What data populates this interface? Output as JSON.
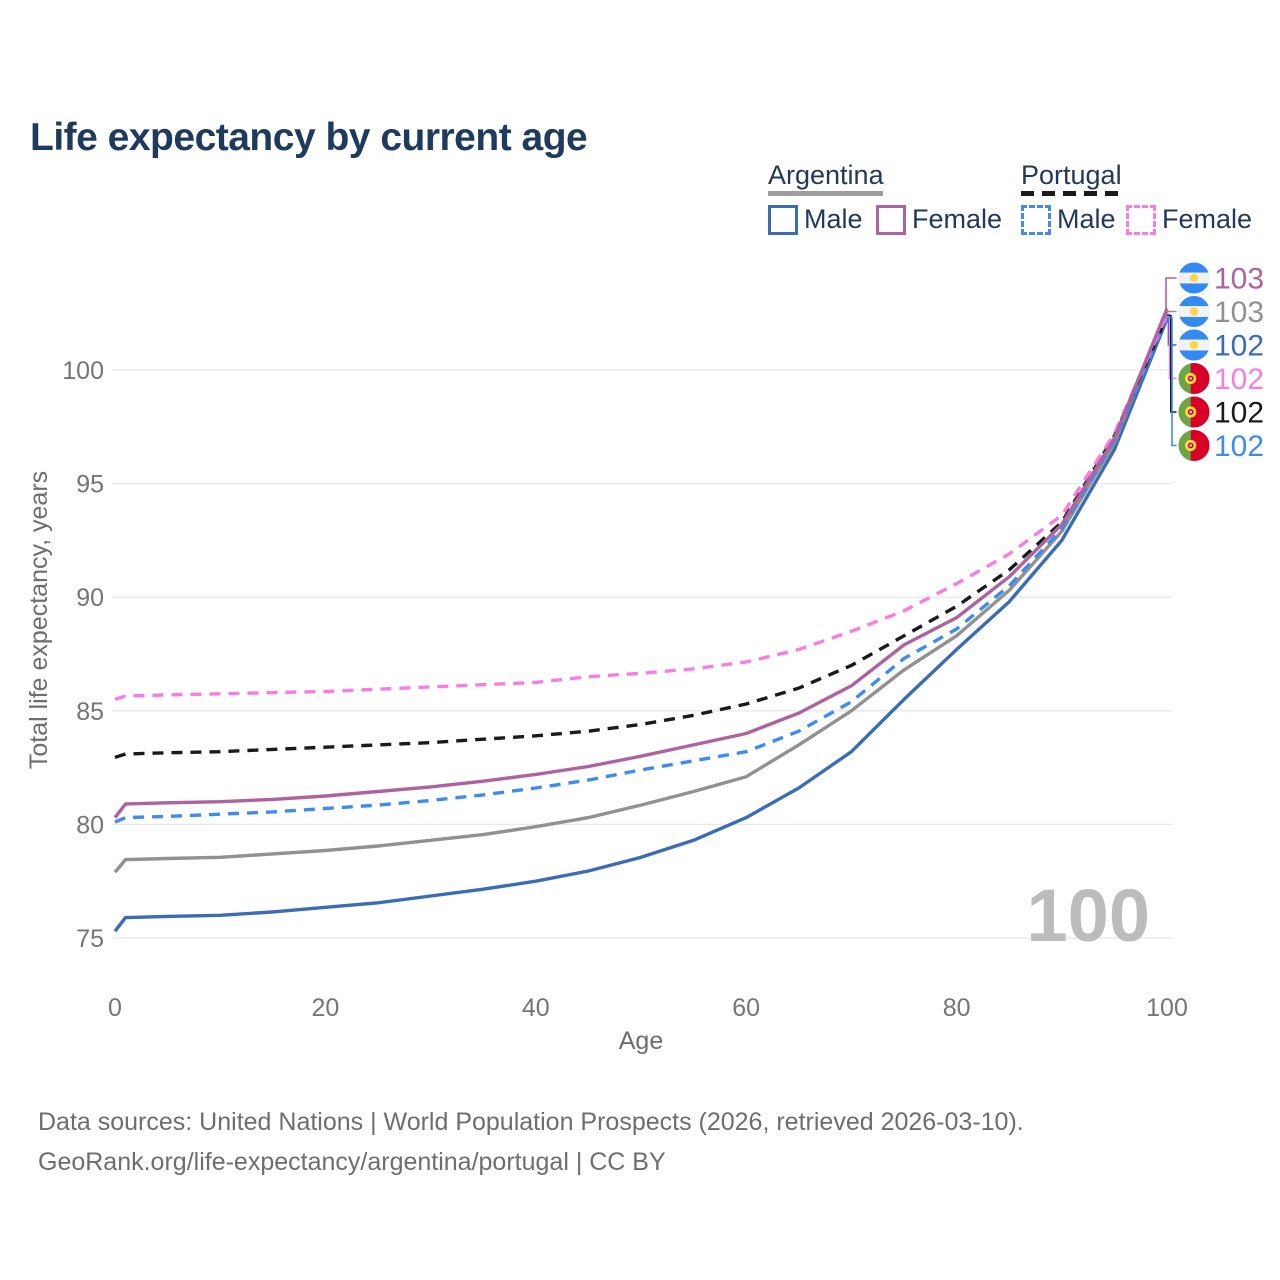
{
  "page": {
    "title": "Life expectancy by current age"
  },
  "legend": {
    "groups": [
      {
        "title": "Argentina",
        "line_style": "solid",
        "underline_series": "argentina_both",
        "items": [
          {
            "label": "Male",
            "key": "argentina_male"
          },
          {
            "label": "Female",
            "key": "argentina_female"
          }
        ]
      },
      {
        "title": "Portugal",
        "line_style": "dashed",
        "underline_series": "portugal_both",
        "items": [
          {
            "label": "Male",
            "key": "portugal_male"
          },
          {
            "label": "Female",
            "key": "portugal_female"
          }
        ]
      }
    ]
  },
  "footer": {
    "line1": "Data sources: United Nations | World Population Prospects (2026, retrieved 2026-03-10).",
    "line2": "GeoRank.org/life-expectancy/argentina/portugal | CC BY"
  },
  "chart_data": {
    "type": "line",
    "title": "Life expectancy by current age",
    "xlabel": "Age",
    "ylabel": "Total life expectancy, years",
    "xlim": [
      0,
      100
    ],
    "ylim": [
      74.5,
      103.2
    ],
    "xticks": [
      0,
      20,
      40,
      60,
      80,
      100
    ],
    "yticks": [
      75,
      80,
      85,
      90,
      95,
      100
    ],
    "grid": "horizontal",
    "legend_position": "top-right",
    "watermark": "100",
    "x": [
      0,
      1,
      5,
      10,
      15,
      20,
      25,
      30,
      35,
      40,
      45,
      50,
      55,
      60,
      65,
      70,
      75,
      80,
      85,
      90,
      95,
      100
    ],
    "series": [
      {
        "key": "argentina_male",
        "name": "Argentina Male",
        "country": "Argentina",
        "sex": "Male",
        "color": "#3b6cb5",
        "dash": "solid",
        "flag": "argentina",
        "end_label": "102",
        "label_row": 2,
        "values": [
          75.3,
          75.9,
          75.95,
          76.0,
          76.15,
          76.35,
          76.55,
          76.85,
          77.15,
          77.5,
          77.95,
          78.55,
          79.3,
          80.3,
          81.6,
          83.2,
          85.5,
          87.7,
          89.8,
          92.5,
          96.5,
          102.25
        ]
      },
      {
        "key": "argentina_both",
        "name": "Argentina Both sexes",
        "country": "Argentina",
        "sex": "Both",
        "color": "#919191",
        "dash": "solid",
        "flag": "argentina",
        "end_label": "103",
        "label_row": 1,
        "values": [
          77.9,
          78.45,
          78.5,
          78.55,
          78.7,
          78.85,
          79.05,
          79.3,
          79.55,
          79.9,
          80.3,
          80.85,
          81.45,
          82.1,
          83.5,
          85.0,
          86.8,
          88.3,
          90.3,
          92.9,
          96.8,
          102.55
        ]
      },
      {
        "key": "portugal_male",
        "name": "Portugal Male",
        "country": "Portugal",
        "sex": "Male",
        "color": "#3f8bf2",
        "dash": "dashed",
        "flag": "portugal",
        "end_label": "102",
        "label_row": 5,
        "values": [
          80.1,
          80.3,
          80.35,
          80.45,
          80.55,
          80.7,
          80.85,
          81.05,
          81.3,
          81.6,
          81.95,
          82.4,
          82.8,
          83.2,
          84.1,
          85.4,
          87.3,
          88.6,
          90.5,
          93.0,
          96.9,
          102.3
        ]
      },
      {
        "key": "portugal_both",
        "name": "Portugal Both sexes",
        "country": "Portugal",
        "sex": "Both",
        "color": "#1a1a1a",
        "dash": "dashed",
        "flag": "portugal",
        "end_label": "102",
        "label_row": 4,
        "values": [
          82.95,
          83.1,
          83.15,
          83.2,
          83.3,
          83.4,
          83.5,
          83.6,
          83.75,
          83.9,
          84.1,
          84.4,
          84.8,
          85.3,
          86.0,
          87.0,
          88.3,
          89.6,
          91.2,
          93.3,
          97.1,
          102.4
        ]
      },
      {
        "key": "portugal_female",
        "name": "Portugal Female",
        "country": "Portugal",
        "sex": "Female",
        "color": "#fb7ce1",
        "dash": "dashed",
        "flag": "portugal",
        "end_label": "102",
        "label_row": 3,
        "values": [
          85.5,
          85.65,
          85.7,
          85.75,
          85.8,
          85.85,
          85.95,
          86.05,
          86.15,
          86.25,
          86.5,
          86.65,
          86.85,
          87.15,
          87.7,
          88.5,
          89.4,
          90.6,
          91.9,
          93.6,
          97.2,
          102.45
        ]
      },
      {
        "key": "argentina_female",
        "name": "Argentina Female",
        "country": "Argentina",
        "sex": "Female",
        "color": "#ae62a0",
        "dash": "solid",
        "flag": "argentina",
        "end_label": "103",
        "label_row": 0,
        "values": [
          80.3,
          80.9,
          80.95,
          81.0,
          81.1,
          81.25,
          81.45,
          81.65,
          81.9,
          82.2,
          82.55,
          83.0,
          83.5,
          84.0,
          84.9,
          86.1,
          87.9,
          89.1,
          90.9,
          93.2,
          97.0,
          102.7
        ]
      }
    ],
    "label_order": [
      "argentina_female",
      "argentina_both",
      "argentina_male",
      "portugal_female",
      "portugal_both",
      "portugal_male"
    ],
    "colors": {
      "gridline": "#e8e8e8",
      "tick_text": "#757575",
      "axis_title_text": "#6e6e6e",
      "watermark": "#bcbcbc"
    },
    "flags": {
      "argentina": {
        "band": "#338af3",
        "mid": "#f2f2f2",
        "sun": "#ffd44b"
      },
      "portugal": {
        "left": "#6da544",
        "right": "#d80027",
        "emblem": "#ffda44",
        "emblem_inner": "#d80027",
        "emblem_core": "#ffffff"
      }
    }
  }
}
